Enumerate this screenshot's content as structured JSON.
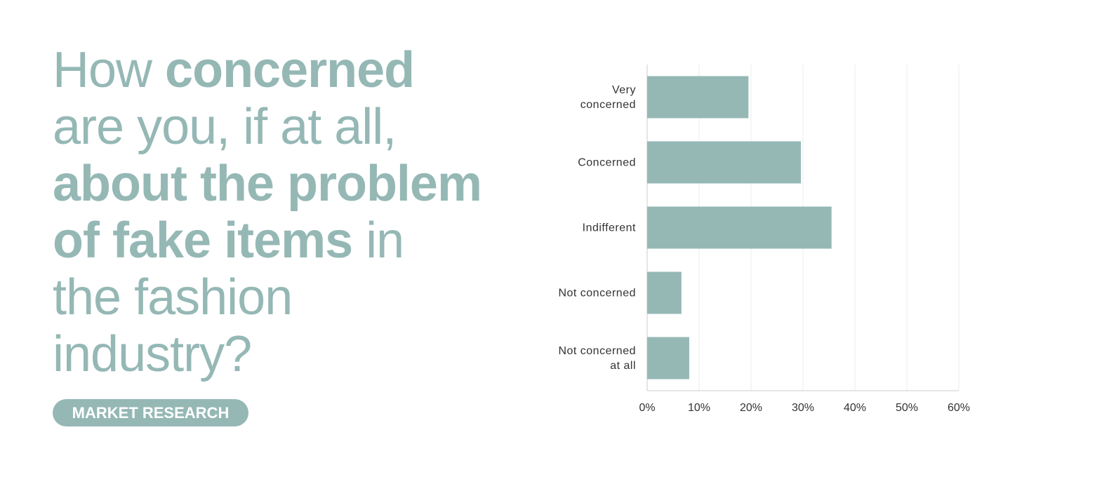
{
  "chart_data": {
    "type": "barh",
    "title": [
      [
        {
          "text": "How ",
          "bold": false
        },
        {
          "text": "concerned",
          "bold": true
        }
      ],
      [
        {
          "text": "are you, if at all,",
          "bold": false
        }
      ],
      [
        {
          "text": "about the problem",
          "bold": true
        }
      ],
      [
        {
          "text": "of fake items",
          "bold": true
        },
        {
          "text": " in",
          "bold": false
        }
      ],
      [
        {
          "text": "the fashion",
          "bold": false
        }
      ],
      [
        {
          "text": "industry?",
          "bold": false
        }
      ]
    ],
    "tag": "MARKET RESEARCH",
    "categories": [
      "Very\nconcerned",
      "Concerned",
      "Indifferent",
      "Not concerned",
      "Not concerned\nat all"
    ],
    "values": [
      19.5,
      29.6,
      35.5,
      6.6,
      8.1
    ],
    "color": "#95b8b5",
    "xlim": [
      0,
      60
    ],
    "xticks": [
      {
        "value": 0,
        "label": "0%"
      },
      {
        "value": 10,
        "label": "10%"
      },
      {
        "value": 20,
        "label": "20%"
      },
      {
        "value": 30,
        "label": "30%"
      },
      {
        "value": 40,
        "label": "40%"
      },
      {
        "value": 50,
        "label": "50%"
      },
      {
        "value": 60,
        "label": "60%"
      }
    ],
    "grid": true
  }
}
